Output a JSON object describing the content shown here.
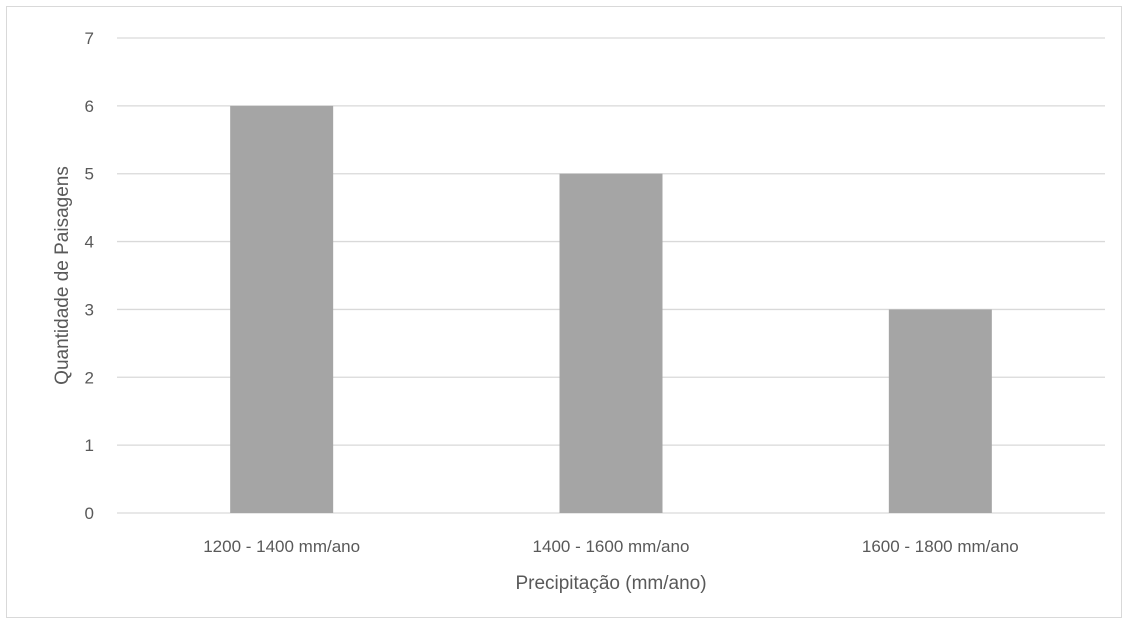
{
  "chart_data": {
    "type": "bar",
    "categories": [
      "1200 - 1400 mm/ano",
      "1400 - 1600 mm/ano",
      "1600 - 1800 mm/ano"
    ],
    "values": [
      6,
      5,
      3
    ],
    "title": "",
    "xlabel": "Precipitação (mm/ano)",
    "ylabel": "Quantidade de Paisagens",
    "ylim": [
      0,
      7
    ],
    "yticks": [
      0,
      1,
      2,
      3,
      4,
      5,
      6,
      7
    ],
    "grid": true,
    "legend": "none",
    "colors": {
      "bar": "#a5a5a5",
      "grid": "#d9d9d9",
      "text": "#595959"
    }
  }
}
